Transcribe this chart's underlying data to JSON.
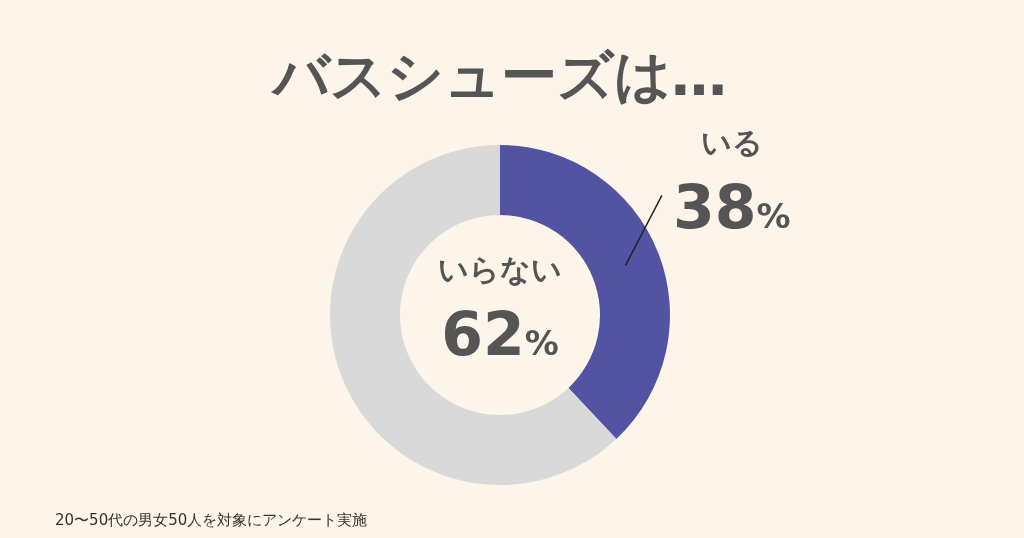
{
  "chart_data": {
    "type": "donut",
    "title": "バスシューズは…",
    "categories": [
      "いる",
      "いらない"
    ],
    "values": [
      38,
      62
    ],
    "colors": [
      "#5254a3",
      "#d9d9d9"
    ],
    "value_labels": [
      "38%",
      "62%"
    ],
    "annotations": [
      "20〜50代の男女50人を対象にアンケート実施"
    ]
  }
}
